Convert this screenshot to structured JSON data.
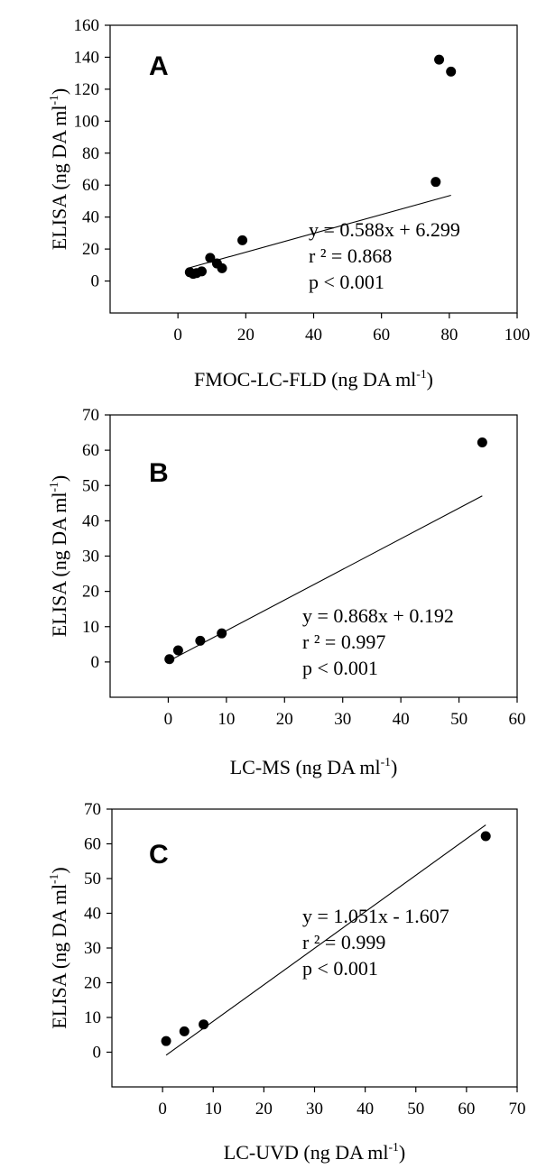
{
  "chart_data": [
    {
      "type": "scatter",
      "panel_label": "A",
      "xlabel": "FMOC-LC-FLD (ng DA ml",
      "ylabel": "ELISA (ng DA ml",
      "unit_superscript": "-1",
      "xlim": [
        -20,
        100
      ],
      "ylim": [
        -20,
        160
      ],
      "xticks": [
        0,
        20,
        40,
        60,
        80,
        100
      ],
      "yticks": [
        0,
        20,
        40,
        60,
        80,
        100,
        120,
        140,
        160
      ],
      "grid": false,
      "points": [
        {
          "x": 3.5,
          "y": 5.5
        },
        {
          "x": 4.5,
          "y": 4.5
        },
        {
          "x": 5.5,
          "y": 5
        },
        {
          "x": 7,
          "y": 6
        },
        {
          "x": 9.5,
          "y": 14.5
        },
        {
          "x": 11.5,
          "y": 11
        },
        {
          "x": 13,
          "y": 8
        },
        {
          "x": 19,
          "y": 25.5
        },
        {
          "x": 76,
          "y": 62
        },
        {
          "x": 77,
          "y": 138.5
        },
        {
          "x": 80.5,
          "y": 131
        }
      ],
      "fit": {
        "slope": 0.588,
        "intercept": 6.299,
        "x_range": [
          3.5,
          80.5
        ]
      },
      "equation": "y = 0.588x + 6.299",
      "r_squared": "r ² = 0.868",
      "p_value": "p <  0.001"
    },
    {
      "type": "scatter",
      "panel_label": "B",
      "xlabel": "LC-MS (ng DA ml",
      "ylabel": "ELISA (ng DA ml",
      "unit_superscript": "-1",
      "xlim": [
        -10,
        60
      ],
      "ylim": [
        -10,
        70
      ],
      "xticks": [
        0,
        10,
        20,
        30,
        40,
        50,
        60
      ],
      "yticks": [
        0,
        10,
        20,
        30,
        40,
        50,
        60,
        70
      ],
      "grid": false,
      "points": [
        {
          "x": 0.2,
          "y": 0.8
        },
        {
          "x": 1.7,
          "y": 3.3
        },
        {
          "x": 5.5,
          "y": 6
        },
        {
          "x": 9.2,
          "y": 8.1
        },
        {
          "x": 54,
          "y": 62.2
        }
      ],
      "fit": {
        "slope": 0.868,
        "intercept": 0.192,
        "x_range": [
          0.2,
          54
        ]
      },
      "equation": "y = 0.868x + 0.192",
      "r_squared": "r ² = 0.997",
      "p_value": "p < 0.001"
    },
    {
      "type": "scatter",
      "panel_label": "C",
      "xlabel": "LC-UVD (ng DA ml",
      "ylabel": "ELISA (ng DA ml",
      "unit_superscript": "-1",
      "xlim": [
        -10,
        70
      ],
      "ylim": [
        -10,
        70
      ],
      "xticks": [
        0,
        10,
        20,
        30,
        40,
        50,
        60,
        70
      ],
      "yticks": [
        0,
        10,
        20,
        30,
        40,
        50,
        60,
        70
      ],
      "grid": false,
      "points": [
        {
          "x": 0.7,
          "y": 3.2
        },
        {
          "x": 4.3,
          "y": 6
        },
        {
          "x": 8.1,
          "y": 8
        },
        {
          "x": 63.8,
          "y": 62.2
        }
      ],
      "fit": {
        "slope": 1.051,
        "intercept": -1.607,
        "x_range": [
          0.7,
          63.8
        ]
      },
      "equation": "y = 1.051x - 1.607",
      "r_squared": "r ² = 0.999",
      "p_value": "p < 0.001"
    }
  ]
}
